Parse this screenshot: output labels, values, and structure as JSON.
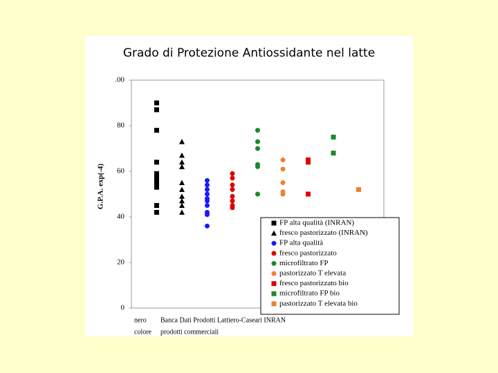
{
  "chart_data": {
    "type": "scatter",
    "title": "Grado di Protezione Antiossidante nel latte",
    "y_label": "G.P.A. exp(-4)",
    "xlim": [
      0,
      10
    ],
    "ylim": [
      0,
      100
    ],
    "yticks": [
      0,
      20,
      40,
      60,
      80,
      {
        "value": 100,
        "label": ".00"
      }
    ],
    "annotations": [
      "nero",
      "colore",
      "Banca Dati Prodotti Lattiero-Caseari INRAN",
      "prodotti commerciali"
    ],
    "series": [
      {
        "name": "FP alta qualità (INRAN)",
        "color": "#000000",
        "marker": "square",
        "x": [
          1,
          1,
          1,
          1,
          1,
          1,
          1,
          1,
          1,
          1
        ],
        "values": [
          90,
          87,
          78,
          64,
          59,
          57,
          55,
          53,
          45,
          42
        ]
      },
      {
        "name": " fresco pastorizzato (INRAN)",
        "color": "#000000",
        "marker": "triangle",
        "x": [
          2,
          2,
          2,
          2,
          2,
          2,
          2,
          2,
          2,
          2
        ],
        "values": [
          73,
          67,
          64,
          62,
          55,
          52,
          49,
          47,
          45,
          42
        ]
      },
      {
        "name": "FP alta qualità",
        "color": "#1a1aff",
        "marker": "circle",
        "x": [
          3,
          3,
          3,
          3,
          3,
          3,
          3,
          3,
          3,
          3
        ],
        "values": [
          56,
          54,
          52,
          50,
          48,
          47,
          45,
          42,
          41,
          36
        ]
      },
      {
        "name": "fresco pastorizzato",
        "color": "#e00000",
        "marker": "circle",
        "x": [
          4,
          4,
          4,
          4,
          4,
          4,
          4,
          4
        ],
        "values": [
          59,
          57,
          54,
          52,
          49,
          47,
          45,
          44
        ]
      },
      {
        "name": "microfiltrato FP",
        "color": "#1a8a2a",
        "marker": "circle",
        "x": [
          5,
          5,
          5,
          5,
          5,
          5
        ],
        "values": [
          78,
          73,
          70,
          63,
          62,
          50
        ]
      },
      {
        "name": "pastorizzato T elevata",
        "color": "#f08030",
        "marker": "circle",
        "x": [
          6,
          6,
          6,
          6,
          6
        ],
        "values": [
          65,
          61,
          55,
          51,
          50
        ]
      },
      {
        "name": "fresco pastorizzato  bio",
        "color": "#e00000",
        "marker": "square",
        "x": [
          7,
          7,
          7
        ],
        "values": [
          65,
          64,
          50
        ]
      },
      {
        "name": "microfiltrato FP bio",
        "color": "#1a8a2a",
        "marker": "square",
        "x": [
          8,
          8
        ],
        "values": [
          75,
          68
        ]
      },
      {
        "name": "pastorizzato T elevata bio",
        "color": "#f08030",
        "marker": "square",
        "x": [
          9
        ],
        "values": [
          52
        ]
      }
    ]
  }
}
